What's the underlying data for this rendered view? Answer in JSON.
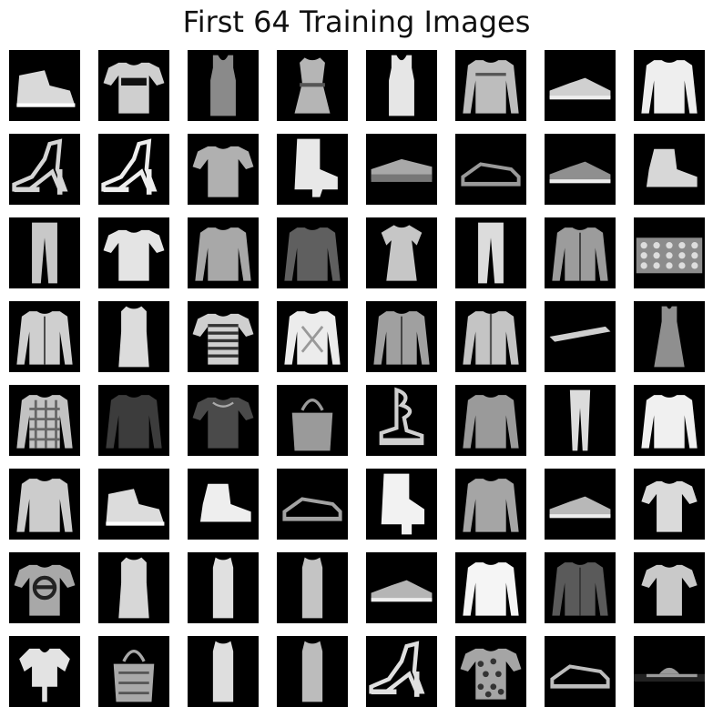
{
  "figure": {
    "title": "First 64 Training Images",
    "grid": {
      "rows": 8,
      "cols": 8
    },
    "background_color": "#000000"
  },
  "images": [
    {
      "label": "ankle-boot",
      "shape": "sneaker-high",
      "tone": "#d9d9d9"
    },
    {
      "label": "t-shirt",
      "shape": "tshirt-logo",
      "tone": "#cfcfcf"
    },
    {
      "label": "top",
      "shape": "tanktop",
      "tone": "#8a8a8a"
    },
    {
      "label": "dress",
      "shape": "dress-peplum",
      "tone": "#b5b5b5"
    },
    {
      "label": "top",
      "shape": "tanktop-light",
      "tone": "#e6e6e6"
    },
    {
      "label": "pullover",
      "shape": "sweater-stripe",
      "tone": "#bdbdbd"
    },
    {
      "label": "sneaker",
      "shape": "sneaker",
      "tone": "#d0d0d0"
    },
    {
      "label": "pullover",
      "shape": "sweater",
      "tone": "#eeeeee"
    },
    {
      "label": "sandal",
      "shape": "heel-sandal",
      "tone": "#d5d5d5"
    },
    {
      "label": "sandal",
      "shape": "heel-sandal-2",
      "tone": "#eeeeee"
    },
    {
      "label": "t-shirt",
      "shape": "tshirt",
      "tone": "#b0b0b0"
    },
    {
      "label": "ankle-boot",
      "shape": "boot-heel",
      "tone": "#e8e8e8"
    },
    {
      "label": "sandal",
      "shape": "platform-sandal",
      "tone": "#a8a8a8"
    },
    {
      "label": "sandal",
      "shape": "flat-sandal",
      "tone": "#9a9a9a"
    },
    {
      "label": "sneaker",
      "shape": "sneaker-low",
      "tone": "#8f8f8f"
    },
    {
      "label": "ankle-boot",
      "shape": "boot",
      "tone": "#d7d7d7"
    },
    {
      "label": "trouser",
      "shape": "trouser",
      "tone": "#c8c8c8"
    },
    {
      "label": "t-shirt",
      "shape": "tshirt",
      "tone": "#e4e4e4"
    },
    {
      "label": "pullover",
      "shape": "sweater",
      "tone": "#a8a8a8"
    },
    {
      "label": "coat",
      "shape": "coat-dark",
      "tone": "#5f5f5f"
    },
    {
      "label": "dress",
      "shape": "dress-short",
      "tone": "#c6c6c6"
    },
    {
      "label": "trouser",
      "shape": "trouser",
      "tone": "#dcdcdc"
    },
    {
      "label": "coat",
      "shape": "coat-hood",
      "tone": "#9c9c9c"
    },
    {
      "label": "bag",
      "shape": "bag-pattern",
      "tone": "#8c8c8c"
    },
    {
      "label": "coat",
      "shape": "hoodie",
      "tone": "#cfcfcf"
    },
    {
      "label": "dress",
      "shape": "dress-long",
      "tone": "#dcdcdc"
    },
    {
      "label": "t-shirt",
      "shape": "tshirt-stripe",
      "tone": "#cfcfcf"
    },
    {
      "label": "pullover",
      "shape": "sweater-pattern",
      "tone": "#ececec"
    },
    {
      "label": "coat",
      "shape": "hoodie-grey",
      "tone": "#a0a0a0"
    },
    {
      "label": "coat",
      "shape": "jacket",
      "tone": "#c4c4c4"
    },
    {
      "label": "sandal",
      "shape": "flip-flop",
      "tone": "#cfcfcf"
    },
    {
      "label": "dress",
      "shape": "dress-sleeveless",
      "tone": "#8f8f8f"
    },
    {
      "label": "shirt",
      "shape": "shirt-plaid",
      "tone": "#c2c2c2"
    },
    {
      "label": "shirt",
      "shape": "shirt-dark",
      "tone": "#3c3c3c"
    },
    {
      "label": "t-shirt",
      "shape": "tshirt-dark",
      "tone": "#4a4a4a"
    },
    {
      "label": "bag",
      "shape": "tote",
      "tone": "#9a9a9a"
    },
    {
      "label": "sandal",
      "shape": "gladiator",
      "tone": "#d0d0d0"
    },
    {
      "label": "pullover",
      "shape": "sweater",
      "tone": "#9a9a9a"
    },
    {
      "label": "trouser",
      "shape": "leggings",
      "tone": "#dcdcdc"
    },
    {
      "label": "shirt",
      "shape": "shirt",
      "tone": "#f0f0f0"
    },
    {
      "label": "pullover",
      "shape": "sweater",
      "tone": "#cccccc"
    },
    {
      "label": "sneaker",
      "shape": "sneaker-high-low",
      "tone": "#dcdcdc"
    },
    {
      "label": "ankle-boot",
      "shape": "boot-short",
      "tone": "#eeeeee"
    },
    {
      "label": "sandal",
      "shape": "flat-sandal",
      "tone": "#a3a3a3"
    },
    {
      "label": "ankle-boot",
      "shape": "boot-platform",
      "tone": "#f2f2f2"
    },
    {
      "label": "pullover",
      "shape": "sweater",
      "tone": "#a5a5a5"
    },
    {
      "label": "sneaker",
      "shape": "sneaker",
      "tone": "#b8b8b8"
    },
    {
      "label": "dress",
      "shape": "dress-tunic",
      "tone": "#dadada"
    },
    {
      "label": "t-shirt",
      "shape": "tshirt-circle",
      "tone": "#a8a8a8"
    },
    {
      "label": "dress",
      "shape": "dress-long",
      "tone": "#d7d7d7"
    },
    {
      "label": "dress",
      "shape": "dress-slim",
      "tone": "#e0e0e0"
    },
    {
      "label": "dress",
      "shape": "dress-slim",
      "tone": "#c4c4c4"
    },
    {
      "label": "sneaker",
      "shape": "sneaker",
      "tone": "#b5b5b5"
    },
    {
      "label": "pullover",
      "shape": "sweater",
      "tone": "#f5f5f5"
    },
    {
      "label": "coat",
      "shape": "hoodie-dark",
      "tone": "#5a5a5a"
    },
    {
      "label": "shirt",
      "shape": "shirt-short",
      "tone": "#c9c9c9"
    },
    {
      "label": "shirt",
      "shape": "blouse",
      "tone": "#e3e3e3"
    },
    {
      "label": "bag",
      "shape": "tote-pattern",
      "tone": "#a9a9a9"
    },
    {
      "label": "dress",
      "shape": "dress-slim",
      "tone": "#dedede"
    },
    {
      "label": "dress",
      "shape": "dress-slim",
      "tone": "#bcbcbc"
    },
    {
      "label": "sandal",
      "shape": "heel-strappy",
      "tone": "#e0e0e0"
    },
    {
      "label": "shirt",
      "shape": "tshirt-floral",
      "tone": "#a5a5a5"
    },
    {
      "label": "sandal",
      "shape": "flat-sandal-thin",
      "tone": "#bdbdbd"
    },
    {
      "label": "sandal",
      "shape": "slide",
      "tone": "#9a9a9a"
    }
  ]
}
